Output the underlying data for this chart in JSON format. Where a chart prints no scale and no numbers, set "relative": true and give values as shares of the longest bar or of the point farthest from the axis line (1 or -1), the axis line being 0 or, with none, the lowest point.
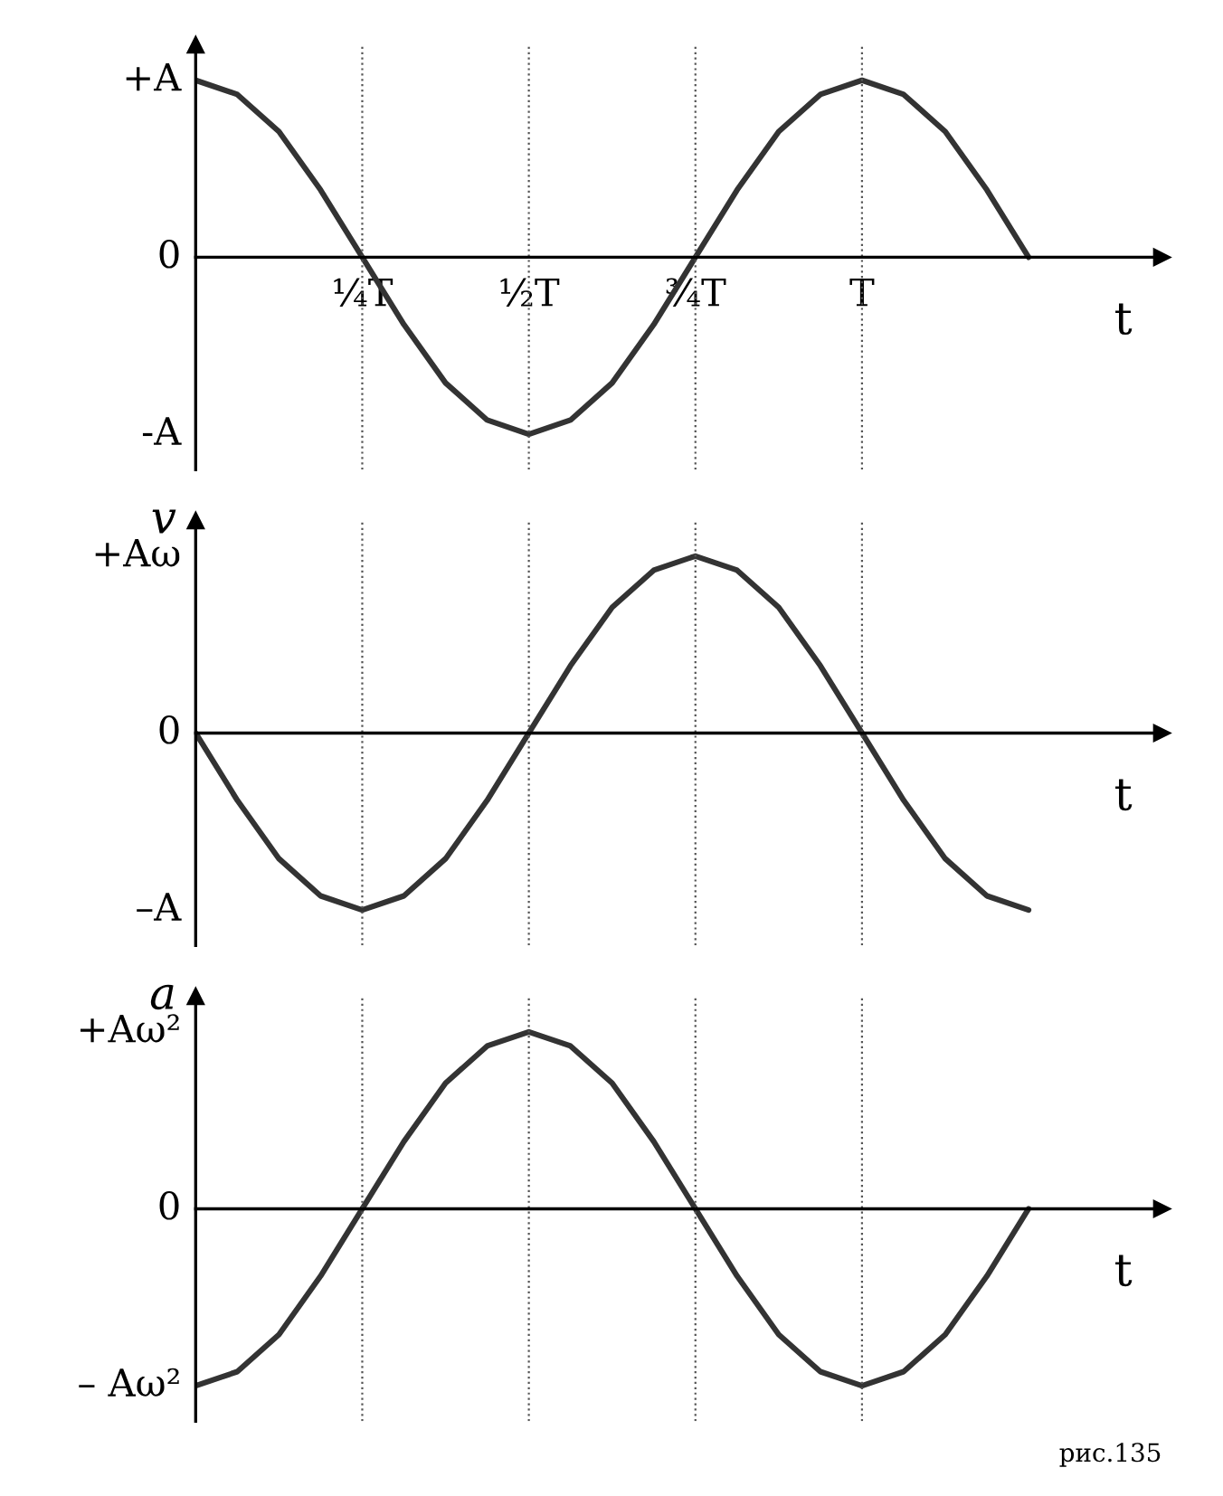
{
  "chart_data": [
    {
      "type": "line",
      "xlabel": "t",
      "relative": true,
      "categories": [
        null,
        null,
        null,
        null,
        "¼T",
        null,
        null,
        null,
        "½T",
        null,
        null,
        null,
        "¾T",
        null,
        null,
        null,
        "T",
        null,
        null,
        null,
        null
      ],
      "series": [
        {
          "color": "#333333",
          "values": [
            1,
            0.92,
            0.71,
            0.38,
            0,
            -0.38,
            -0.71,
            -0.92,
            -1,
            -0.92,
            -0.71,
            -0.38,
            0,
            0.38,
            0.71,
            0.92,
            1,
            0.92,
            0.71,
            0.38,
            0
          ]
        }
      ],
      "annotations": [
        "+A",
        "0",
        "-A"
      ],
      "line_style": "solid",
      "grid": "x"
    },
    {
      "type": "line",
      "xlabel": "t",
      "ylabel": "v",
      "relative": true,
      "categories": [
        null,
        null,
        null,
        null,
        null,
        null,
        null,
        null,
        null,
        null,
        null,
        null,
        null,
        null,
        null,
        null,
        null,
        null,
        null,
        null,
        null
      ],
      "series": [
        {
          "color": "#333333",
          "values": [
            0,
            -0.38,
            -0.71,
            -0.92,
            -1,
            -0.92,
            -0.71,
            -0.38,
            0,
            0.38,
            0.71,
            0.92,
            1,
            0.92,
            0.71,
            0.38,
            0,
            -0.38,
            -0.71,
            -0.92,
            -1
          ]
        }
      ],
      "annotations": [
        "+Aω",
        "0",
        "–A"
      ],
      "line_style": "solid",
      "grid": "x"
    },
    {
      "type": "line",
      "xlabel": "t",
      "ylabel": "a",
      "relative": true,
      "categories": [
        null,
        null,
        null,
        null,
        null,
        null,
        null,
        null,
        null,
        null,
        null,
        null,
        null,
        null,
        null,
        null,
        null,
        null,
        null,
        null,
        null
      ],
      "series": [
        {
          "color": "#333333",
          "values": [
            -1,
            -0.92,
            -0.71,
            -0.38,
            0,
            0.38,
            0.71,
            0.92,
            1,
            0.92,
            0.71,
            0.38,
            0,
            -0.38,
            -0.71,
            -0.92,
            -1,
            -0.92,
            -0.71,
            -0.38,
            0
          ]
        }
      ],
      "annotations": [
        "+Aω²",
        "0",
        "– Aω²",
        "рис.135"
      ],
      "line_style": "solid",
      "grid": "x"
    }
  ]
}
